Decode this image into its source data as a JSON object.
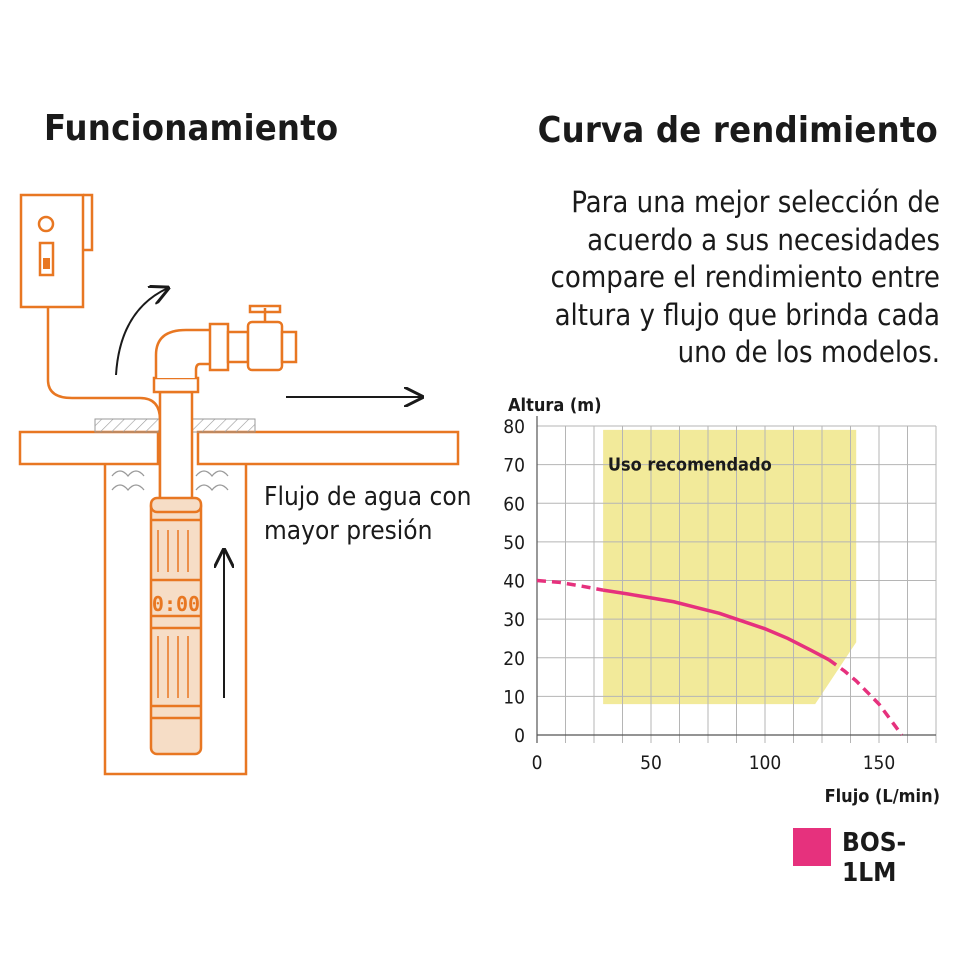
{
  "left": {
    "title": "Funcionamiento",
    "flow_label": "Flujo de agua con mayor presión",
    "pump_display": "0:00",
    "colors": {
      "outline": "#e87722",
      "pump_fill": "#f6ddc6"
    }
  },
  "right": {
    "title": "Curva de rendimiento",
    "description": "Para una mejor selección de acuerdo a sus necesidades compare el rendimiento entre altura y flujo que brinda cada uno de los modelos."
  },
  "chart_data": {
    "type": "line",
    "xlabel": "Flujo (L/min)",
    "ylabel": "Altura (m)",
    "xlim": [
      0,
      175
    ],
    "ylim": [
      0,
      80
    ],
    "xticks": [
      0,
      50,
      100,
      150
    ],
    "yticks": [
      0,
      10,
      20,
      30,
      40,
      50,
      60,
      70,
      80
    ],
    "grid": true,
    "recommended_zone": {
      "label": "Uso recomendado",
      "color": "#f2ea9a",
      "polygon": [
        [
          29,
          8
        ],
        [
          29,
          79
        ],
        [
          140,
          79
        ],
        [
          140,
          24
        ],
        [
          122,
          8
        ]
      ]
    },
    "series": [
      {
        "name": "BOS-1LM",
        "color": "#e6317d",
        "x": [
          0,
          10,
          20,
          29,
          40,
          50,
          60,
          70,
          80,
          90,
          100,
          110,
          120,
          128,
          135,
          140,
          150,
          160
        ],
        "y": [
          40,
          39.5,
          38.5,
          37.5,
          36.5,
          35.5,
          34.5,
          33,
          31.5,
          29.5,
          27.5,
          25,
          22,
          19.5,
          16.5,
          14,
          8,
          0
        ]
      }
    ],
    "legend": "bottom-right"
  }
}
